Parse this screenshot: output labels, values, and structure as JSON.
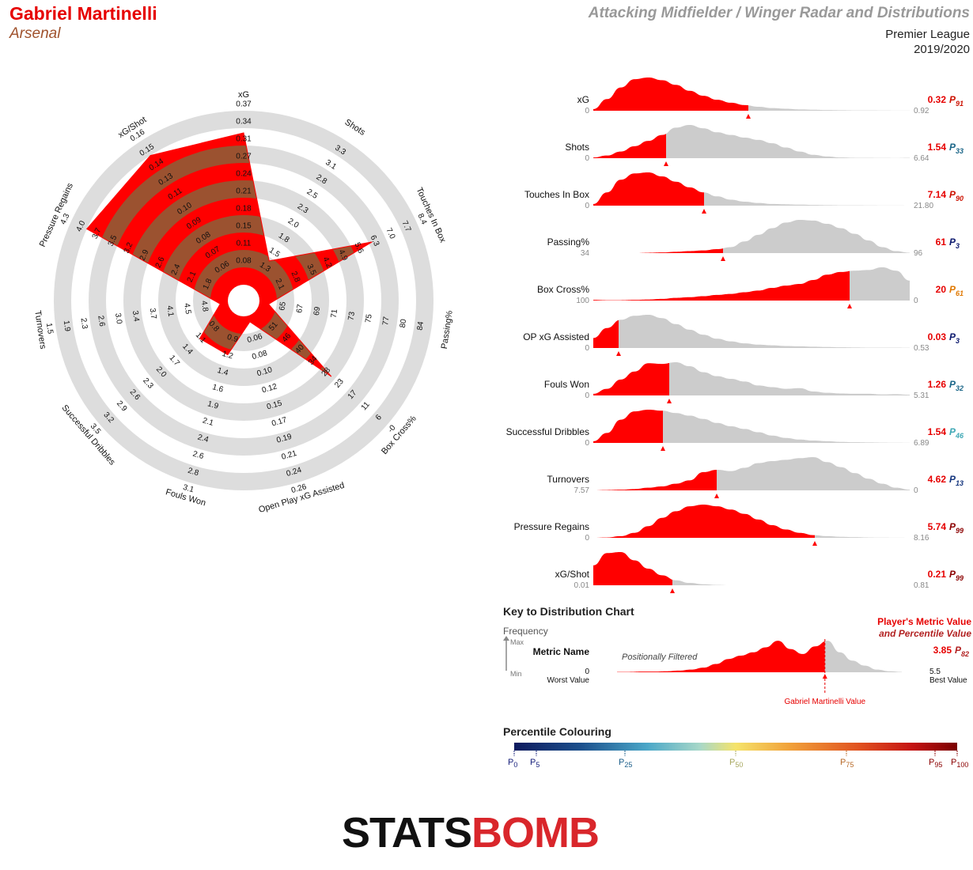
{
  "header": {
    "player": "Gabriel Martinelli",
    "team": "Arsenal",
    "title": "Attacking Midfielder / Winger Radar and Distributions",
    "league": "Premier League",
    "season": "2019/2020"
  },
  "colors": {
    "fill_a": "#ff0000",
    "fill_b": "#9b5230",
    "ring": "#dddddd",
    "dist_red": "#ff0000",
    "dist_grey": "#cccccc"
  },
  "chart_data": [
    {
      "type": "radar",
      "metrics": [
        {
          "name": "xG",
          "ticks": [
            "0.08",
            "0.11",
            "0.15",
            "0.18",
            "0.21",
            "0.24",
            "0.27",
            "0.31",
            "0.34",
            "0.37"
          ],
          "value_frac": 0.97
        },
        {
          "name": "Shots",
          "ticks": [
            "1.3",
            "1.5",
            "1.8",
            "2.0",
            "2.3",
            "2.5",
            "2.8",
            "3.1",
            "3.3"
          ],
          "value_frac": 0.2
        },
        {
          "name": "Touches In Box",
          "ticks": [
            "2.1",
            "2.8",
            "3.5",
            "4.2",
            "4.9",
            "5.6",
            "6.3",
            "7.0",
            "7.7",
            "8.4"
          ],
          "value_frac": 0.8
        },
        {
          "name": "Passing%",
          "ticks": [
            "65",
            "67",
            "69",
            "71",
            "73",
            "75",
            "77",
            "80",
            "84"
          ],
          "value_frac": 0.06
        },
        {
          "name": "Box Cross%",
          "ticks": [
            "51",
            "46",
            "40",
            "34",
            "28",
            "23",
            "17",
            "11",
            "6",
            "-0"
          ],
          "value_frac": 0.64
        },
        {
          "name": "Open Play xG Assisted",
          "ticks": [
            "0.06",
            "0.08",
            "0.10",
            "0.12",
            "0.15",
            "0.17",
            "0.19",
            "0.21",
            "0.24",
            "0.26"
          ],
          "value_frac": 0.04
        },
        {
          "name": "Fouls Won",
          "ticks": [
            "0.9",
            "1.2",
            "1.4",
            "1.6",
            "1.9",
            "2.1",
            "2.4",
            "2.6",
            "2.8",
            "3.1"
          ],
          "value_frac": 0.26
        },
        {
          "name": "Successful Dribbles",
          "ticks": [
            "0.8",
            "1.1",
            "1.4",
            "1.7",
            "2.0",
            "2.3",
            "2.6",
            "2.9",
            "3.2",
            "3.5"
          ],
          "value_frac": 0.27
        },
        {
          "name": "Turnovers",
          "ticks": [
            "4.8",
            "4.5",
            "4.1",
            "3.7",
            "3.4",
            "3.0",
            "2.6",
            "2.3",
            "1.9",
            "1.5"
          ],
          "value_frac": 0.05
        },
        {
          "name": "Pressure Regains",
          "ticks": [
            "1.8",
            "2.1",
            "2.4",
            "2.6",
            "2.9",
            "3.2",
            "3.5",
            "3.7",
            "4.0",
            "4.3"
          ],
          "value_frac": 1.0
        },
        {
          "name": "xG/Shot",
          "ticks": [
            "0.06",
            "0.07",
            "0.08",
            "0.09",
            "0.10",
            "0.11",
            "0.13",
            "0.14",
            "0.15",
            "0.16"
          ],
          "value_frac": 1.0
        }
      ]
    },
    {
      "type": "area",
      "rows": [
        {
          "name": "xG",
          "min": "0",
          "max": "0.92",
          "value": "0.32",
          "p": "91",
          "pcolor": "#cc1100",
          "marker": 0.49,
          "curve": [
            0.05,
            0.35,
            0.7,
            0.95,
            1.0,
            0.92,
            0.78,
            0.6,
            0.45,
            0.33,
            0.24,
            0.17,
            0.12,
            0.08,
            0.06,
            0.04,
            0.03,
            0.02,
            0.015,
            0.01,
            0.008,
            0.006,
            0.004,
            0.002
          ]
        },
        {
          "name": "Shots",
          "min": "0",
          "max": "6.64",
          "value": "1.54",
          "p": "33",
          "pcolor": "#1b6688",
          "marker": 0.23,
          "curve": [
            0.02,
            0.08,
            0.2,
            0.36,
            0.52,
            0.7,
            0.92,
            1.0,
            0.9,
            0.78,
            0.7,
            0.62,
            0.55,
            0.45,
            0.32,
            0.2,
            0.1,
            0.05,
            0.02,
            0.01,
            0.01,
            0.005,
            0.003,
            0.01
          ]
        },
        {
          "name": "Touches In Box",
          "min": "0",
          "max": "21.80",
          "value": "7.14",
          "p": "90",
          "pcolor": "#cc1100",
          "marker": 0.35,
          "curve": [
            0.05,
            0.4,
            0.78,
            0.97,
            1.0,
            0.88,
            0.72,
            0.55,
            0.4,
            0.28,
            0.18,
            0.12,
            0.08,
            0.05,
            0.04,
            0.03,
            0.02,
            0.015,
            0.01,
            0.008,
            0.006,
            0.004,
            0.002,
            0.001
          ]
        },
        {
          "name": "Passing%",
          "min": "34",
          "max": "96",
          "value": "61",
          "p": "3",
          "pcolor": "#0d1a6e",
          "marker": 0.41,
          "curve": [
            0,
            0,
            0,
            0,
            0.01,
            0.02,
            0.04,
            0.06,
            0.08,
            0.12,
            0.18,
            0.35,
            0.55,
            0.75,
            0.92,
            1.0,
            0.98,
            0.88,
            0.75,
            0.58,
            0.38,
            0.18,
            0.06,
            0.01
          ]
        },
        {
          "name": "Box Cross%",
          "min": "100",
          "max": "0",
          "value": "20",
          "p": "61",
          "pcolor": "#e07800",
          "marker": 0.81,
          "curve": [
            0.02,
            0.01,
            0.01,
            0.02,
            0.03,
            0.05,
            0.08,
            0.1,
            0.13,
            0.17,
            0.2,
            0.25,
            0.3,
            0.38,
            0.45,
            0.5,
            0.62,
            0.78,
            0.86,
            0.9,
            0.92,
            1.0,
            0.9,
            0.6
          ]
        },
        {
          "name": "OP xG Assisted",
          "min": "0",
          "max": "0.53",
          "value": "0.03",
          "p": "3",
          "pcolor": "#0d1a6e",
          "marker": 0.08,
          "curve": [
            0.3,
            0.6,
            0.85,
            0.97,
            1.0,
            0.9,
            0.72,
            0.55,
            0.4,
            0.28,
            0.2,
            0.14,
            0.1,
            0.08,
            0.06,
            0.05,
            0.04,
            0.03,
            0.02,
            0.015,
            0.01,
            0.01,
            0.01,
            0.005
          ]
        },
        {
          "name": "Fouls Won",
          "min": "0",
          "max": "5.31",
          "value": "1.26",
          "p": "32",
          "pcolor": "#1b6688",
          "marker": 0.24,
          "curve": [
            0.05,
            0.2,
            0.48,
            0.72,
            0.97,
            0.95,
            1.0,
            0.88,
            0.7,
            0.58,
            0.5,
            0.42,
            0.3,
            0.25,
            0.2,
            0.22,
            0.12,
            0.08,
            0.06,
            0.05,
            0.05,
            0.03,
            0.04,
            0.02
          ]
        },
        {
          "name": "Successful Dribbles",
          "min": "0",
          "max": "6.89",
          "value": "1.54",
          "p": "46",
          "pcolor": "#3fa8b5",
          "marker": 0.22,
          "curve": [
            0.05,
            0.3,
            0.7,
            0.95,
            1.0,
            0.97,
            0.9,
            0.82,
            0.72,
            0.6,
            0.5,
            0.42,
            0.32,
            0.22,
            0.15,
            0.1,
            0.07,
            0.05,
            0.03,
            0.02,
            0.015,
            0.01,
            0.005,
            0.002
          ]
        },
        {
          "name": "Turnovers",
          "min": "7.57",
          "max": "0",
          "value": "4.62",
          "p": "13",
          "pcolor": "#15367e",
          "marker": 0.39,
          "curve": [
            0,
            0.01,
            0.02,
            0.04,
            0.08,
            0.12,
            0.2,
            0.3,
            0.55,
            0.62,
            0.58,
            0.68,
            0.82,
            0.88,
            0.92,
            0.97,
            1.0,
            0.85,
            0.7,
            0.52,
            0.35,
            0.2,
            0.08,
            0.02
          ]
        },
        {
          "name": "Pressure Regains",
          "min": "0",
          "max": "8.16",
          "value": "5.74",
          "p": "99",
          "pcolor": "#8b0000",
          "marker": 0.7,
          "curve": [
            0,
            0.01,
            0.05,
            0.15,
            0.35,
            0.6,
            0.8,
            0.95,
            1.0,
            0.95,
            0.85,
            0.72,
            0.55,
            0.38,
            0.25,
            0.15,
            0.08,
            0.05,
            0.03,
            0.02,
            0.01,
            0.005,
            0.002,
            0.001
          ]
        },
        {
          "name": "xG/Shot",
          "min": "0.01",
          "max": "0.81",
          "value": "0.21",
          "p": "99",
          "pcolor": "#8b0000",
          "marker": 0.25,
          "curve": [
            0.6,
            0.97,
            1.0,
            0.75,
            0.5,
            0.3,
            0.15,
            0.07,
            0.03,
            0.01,
            0,
            0,
            0,
            0,
            0,
            0,
            0,
            0,
            0,
            0,
            0,
            0,
            0,
            0
          ]
        }
      ]
    }
  ],
  "key": {
    "title": "Key to Distribution Chart",
    "frequency": "Frequency",
    "max": "Max",
    "min": "Min",
    "metric_name": "Metric Name",
    "filtered": "Positionally Filtered",
    "worst_val": "0",
    "worst": "Worst Value",
    "best_val": "5.5",
    "best": "Best Value",
    "player_value_1": "Player's Metric Value",
    "player_value_2": "and Percentile Value",
    "example_value": "3.85",
    "example_p": "82",
    "martinelli_value": "Gabriel Martinelli Value",
    "curve": [
      0.01,
      0.01,
      0.02,
      0.02,
      0.03,
      0.05,
      0.08,
      0.14,
      0.25,
      0.4,
      0.5,
      0.6,
      0.75,
      0.95,
      0.7,
      0.55,
      0.78,
      0.95,
      0.6,
      0.35,
      0.2,
      0.08,
      0.03,
      0.01
    ]
  },
  "percentile": {
    "title": "Percentile Colouring",
    "labels": [
      {
        "p": "0",
        "pos": 0.0,
        "color": "#1a237e"
      },
      {
        "p": "5",
        "pos": 0.05,
        "color": "#1a237e"
      },
      {
        "p": "25",
        "pos": 0.25,
        "color": "#1b5e8a"
      },
      {
        "p": "50",
        "pos": 0.5,
        "color": "#a8a860"
      },
      {
        "p": "75",
        "pos": 0.75,
        "color": "#b86b2a"
      },
      {
        "p": "95",
        "pos": 0.95,
        "color": "#8b0000"
      },
      {
        "p": "100",
        "pos": 1.0,
        "color": "#8b0000"
      }
    ]
  },
  "logo": {
    "part1": "STATS",
    "part2": "BOMB"
  }
}
